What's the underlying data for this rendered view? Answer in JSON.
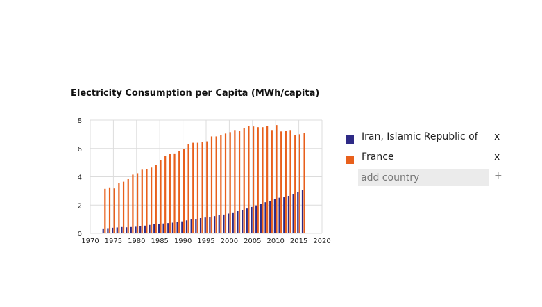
{
  "chart_data": {
    "type": "bar",
    "title": "Electricity Consumption per Capita (MWh/capita)",
    "xlabel": "",
    "ylabel": "",
    "xlim": [
      1970,
      2020
    ],
    "ylim": [
      0,
      8
    ],
    "xticks": [
      1970,
      1975,
      1980,
      1985,
      1990,
      1995,
      2000,
      2005,
      2010,
      2015,
      2020
    ],
    "yticks": [
      0,
      2,
      4,
      6,
      8
    ],
    "x": [
      1973,
      1974,
      1975,
      1976,
      1977,
      1978,
      1979,
      1980,
      1981,
      1982,
      1983,
      1984,
      1985,
      1986,
      1987,
      1988,
      1989,
      1990,
      1991,
      1992,
      1993,
      1994,
      1995,
      1996,
      1997,
      1998,
      1999,
      2000,
      2001,
      2002,
      2003,
      2004,
      2005,
      2006,
      2007,
      2008,
      2009,
      2010,
      2011,
      2012,
      2013,
      2014,
      2015,
      2016
    ],
    "series": [
      {
        "name": "Iran, Islamic Republic of",
        "color": "#2e2a86",
        "values": [
          0.35,
          0.37,
          0.4,
          0.42,
          0.45,
          0.43,
          0.45,
          0.47,
          0.5,
          0.55,
          0.6,
          0.65,
          0.68,
          0.7,
          0.73,
          0.76,
          0.8,
          0.85,
          0.92,
          0.98,
          1.03,
          1.08,
          1.12,
          1.17,
          1.22,
          1.28,
          1.33,
          1.4,
          1.48,
          1.57,
          1.66,
          1.76,
          1.87,
          1.98,
          2.1,
          2.2,
          2.3,
          2.42,
          2.52,
          2.55,
          2.65,
          2.78,
          2.9,
          3.05
        ]
      },
      {
        "name": "France",
        "color": "#e8601c",
        "values": [
          3.15,
          3.25,
          3.18,
          3.55,
          3.65,
          3.85,
          4.15,
          4.25,
          4.5,
          4.55,
          4.65,
          4.85,
          5.2,
          5.45,
          5.6,
          5.65,
          5.8,
          5.95,
          6.3,
          6.4,
          6.4,
          6.45,
          6.5,
          6.85,
          6.85,
          6.95,
          7.05,
          7.15,
          7.3,
          7.25,
          7.45,
          7.6,
          7.55,
          7.5,
          7.5,
          7.6,
          7.3,
          7.65,
          7.2,
          7.25,
          7.3,
          6.95,
          7.0,
          7.1
        ]
      }
    ]
  },
  "legend": {
    "items": [
      {
        "label": "Iran, Islamic Republic of",
        "remove": "x"
      },
      {
        "label": "France",
        "remove": "x"
      }
    ],
    "add_placeholder": "add country",
    "add_button": "+"
  }
}
